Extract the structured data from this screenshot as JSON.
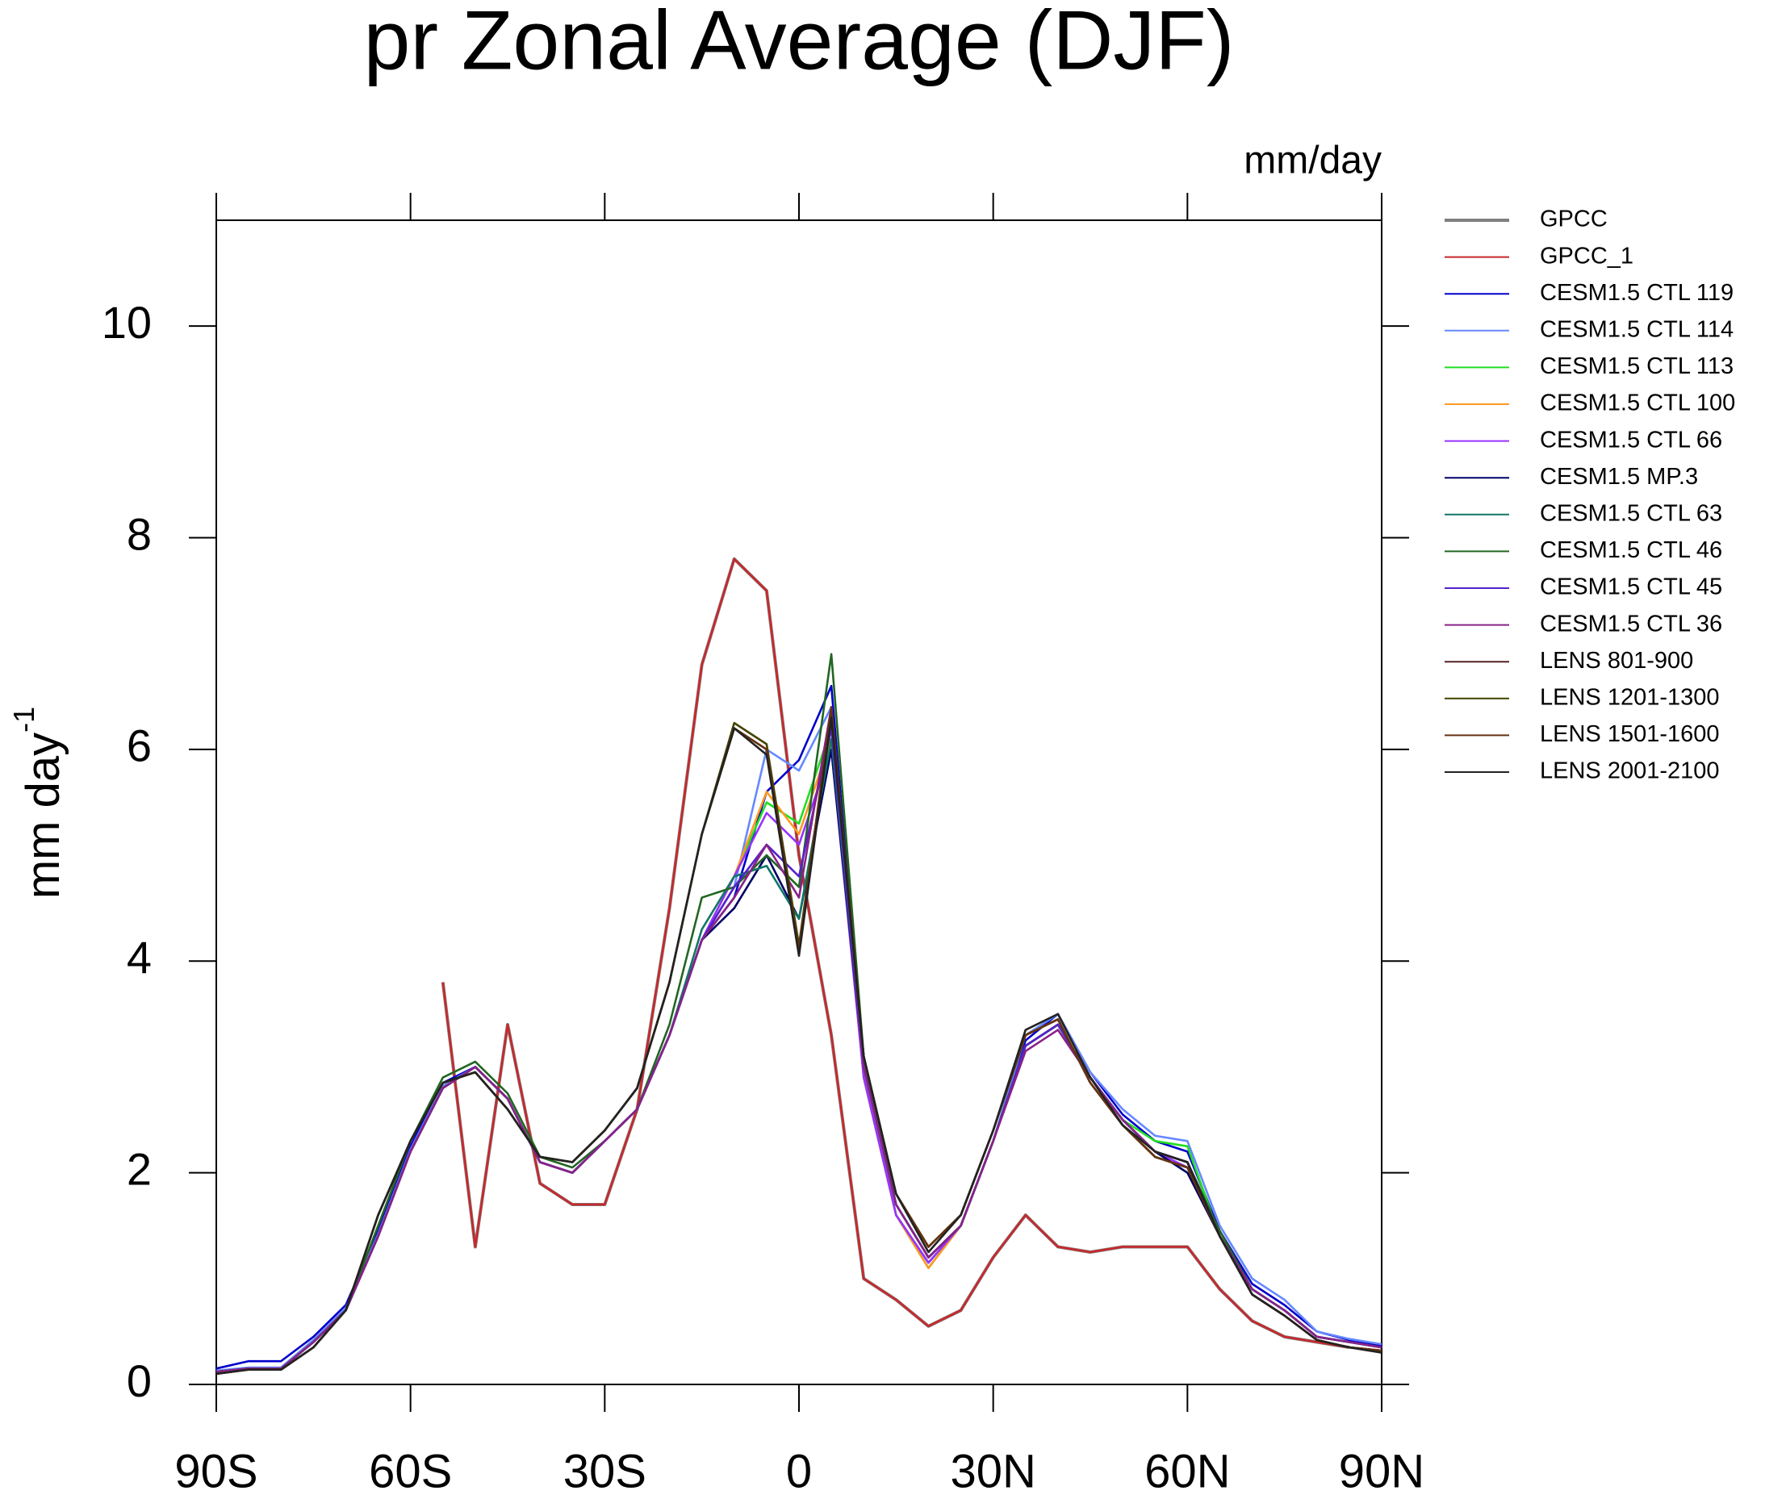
{
  "chart_data": {
    "type": "line",
    "title": "pr Zonal Average (DJF)",
    "units": "mm/day",
    "ylabel": "mm day",
    "ylabel_superscript": "-1",
    "x": [
      -90,
      -85,
      -80,
      -75,
      -70,
      -65,
      -60,
      -55,
      -50,
      -45,
      -40,
      -35,
      -30,
      -25,
      -20,
      -15,
      -10,
      -5,
      0,
      5,
      10,
      15,
      20,
      25,
      30,
      35,
      40,
      45,
      50,
      55,
      60,
      65,
      70,
      75,
      80,
      85,
      90
    ],
    "xlim": [
      -90,
      90
    ],
    "xticks": [
      {
        "value": -90,
        "label": "90S"
      },
      {
        "value": -60,
        "label": "60S"
      },
      {
        "value": -30,
        "label": "30S"
      },
      0,
      {
        "value": 30,
        "label": "30N"
      },
      {
        "value": 60,
        "label": "60N"
      },
      {
        "value": 90,
        "label": "90N"
      }
    ],
    "ylim": [
      0,
      11
    ],
    "yticks": [
      0,
      2,
      4,
      6,
      8,
      10
    ],
    "series": [
      {
        "name": "GPCC",
        "color": "#808080",
        "values": [
          null,
          null,
          null,
          null,
          null,
          null,
          null,
          3.8,
          1.3,
          3.4,
          1.9,
          1.7,
          1.7,
          2.6,
          4.5,
          6.8,
          7.8,
          7.5,
          5.0,
          3.3,
          1.0,
          0.8,
          0.55,
          0.7,
          1.2,
          1.6,
          1.3,
          1.25,
          1.3,
          1.3,
          1.3,
          0.9,
          0.6,
          0.45,
          0.4,
          0.35,
          null
        ]
      },
      {
        "name": "GPCC_1",
        "color": "#c8282c",
        "values": [
          null,
          null,
          null,
          null,
          null,
          null,
          null,
          3.8,
          1.3,
          3.4,
          1.9,
          1.7,
          1.7,
          2.6,
          4.5,
          6.8,
          7.8,
          7.5,
          5.0,
          3.3,
          1.0,
          0.8,
          0.55,
          0.7,
          1.2,
          1.6,
          1.3,
          1.25,
          1.3,
          1.3,
          1.3,
          0.9,
          0.6,
          0.45,
          0.4,
          0.35,
          null
        ]
      },
      {
        "name": "CESM1.5 CTL 119",
        "color": "#0000cc",
        "values": [
          0.15,
          0.22,
          0.22,
          0.45,
          0.75,
          1.45,
          2.25,
          2.85,
          3.0,
          2.7,
          2.1,
          2.0,
          2.3,
          2.6,
          3.3,
          4.2,
          4.6,
          5.6,
          5.9,
          6.6,
          3.0,
          1.6,
          1.15,
          1.5,
          2.3,
          3.25,
          3.5,
          2.95,
          2.55,
          2.3,
          2.2,
          1.45,
          0.95,
          0.75,
          0.5,
          0.42,
          0.37
        ]
      },
      {
        "name": "CESM1.5 CTL 114",
        "color": "#6688ff",
        "values": [
          0.13,
          0.16,
          0.16,
          0.42,
          0.72,
          1.42,
          2.22,
          2.82,
          3.0,
          2.7,
          2.1,
          2.0,
          2.3,
          2.6,
          3.3,
          4.2,
          4.7,
          6.0,
          5.8,
          6.4,
          3.0,
          1.6,
          1.15,
          1.5,
          2.3,
          3.3,
          3.5,
          2.95,
          2.6,
          2.35,
          2.3,
          1.5,
          1.0,
          0.8,
          0.5,
          0.43,
          0.38
        ]
      },
      {
        "name": "CESM1.5 CTL 113",
        "color": "#22dd22",
        "values": [
          0.12,
          0.15,
          0.15,
          0.4,
          0.7,
          1.4,
          2.2,
          2.8,
          3.0,
          2.7,
          2.1,
          2.0,
          2.3,
          2.6,
          3.3,
          4.2,
          4.8,
          5.5,
          5.3,
          6.2,
          2.9,
          1.6,
          1.1,
          1.5,
          2.3,
          3.2,
          3.4,
          2.9,
          2.5,
          2.3,
          2.25,
          1.4,
          0.9,
          0.7,
          0.45,
          0.4,
          0.35
        ]
      },
      {
        "name": "CESM1.5 CTL 100",
        "color": "#ff9922",
        "values": [
          0.12,
          0.15,
          0.15,
          0.4,
          0.7,
          1.4,
          2.2,
          2.8,
          3.0,
          2.7,
          2.1,
          2.0,
          2.3,
          2.6,
          3.3,
          4.2,
          4.8,
          5.6,
          5.2,
          6.1,
          2.9,
          1.6,
          1.1,
          1.5,
          2.3,
          3.2,
          3.4,
          2.9,
          2.5,
          2.2,
          2.1,
          1.4,
          0.9,
          0.7,
          0.45,
          0.4,
          0.35
        ]
      },
      {
        "name": "CESM1.5 CTL 66",
        "color": "#9933ff",
        "values": [
          0.12,
          0.15,
          0.15,
          0.4,
          0.7,
          1.4,
          2.2,
          2.8,
          3.0,
          2.7,
          2.1,
          2.0,
          2.3,
          2.6,
          3.3,
          4.2,
          4.8,
          5.4,
          5.1,
          6.0,
          2.9,
          1.6,
          1.15,
          1.5,
          2.3,
          3.2,
          3.4,
          2.9,
          2.5,
          2.2,
          2.05,
          1.4,
          0.9,
          0.7,
          0.45,
          0.4,
          0.35
        ]
      },
      {
        "name": "CESM1.5 MP.3",
        "color": "#000066",
        "values": [
          0.12,
          0.15,
          0.15,
          0.4,
          0.7,
          1.4,
          2.2,
          2.8,
          3.0,
          2.7,
          2.1,
          2.0,
          2.3,
          2.6,
          3.3,
          4.2,
          4.5,
          5.0,
          4.4,
          6.0,
          3.0,
          1.7,
          1.2,
          1.5,
          2.3,
          3.2,
          3.4,
          2.9,
          2.5,
          2.2,
          2.0,
          1.4,
          0.9,
          0.7,
          0.45,
          0.4,
          0.35
        ]
      },
      {
        "name": "CESM1.5 CTL 63",
        "color": "#117766",
        "values": [
          0.12,
          0.15,
          0.15,
          0.4,
          0.7,
          1.4,
          2.2,
          2.8,
          3.0,
          2.7,
          2.1,
          2.0,
          2.3,
          2.6,
          3.3,
          4.3,
          4.8,
          4.9,
          4.4,
          6.1,
          3.0,
          1.7,
          1.2,
          1.5,
          2.3,
          3.2,
          3.4,
          2.9,
          2.5,
          2.2,
          2.1,
          1.4,
          0.9,
          0.7,
          0.45,
          0.4,
          0.35
        ]
      },
      {
        "name": "CESM1.5 CTL 46",
        "color": "#226622",
        "values": [
          0.12,
          0.15,
          0.15,
          0.4,
          0.7,
          1.5,
          2.3,
          2.9,
          3.05,
          2.75,
          2.15,
          2.05,
          2.3,
          2.6,
          3.4,
          4.6,
          4.7,
          5.0,
          4.7,
          6.9,
          3.1,
          1.7,
          1.2,
          1.5,
          2.3,
          3.2,
          3.4,
          2.9,
          2.5,
          2.2,
          2.1,
          1.45,
          0.9,
          0.7,
          0.45,
          0.4,
          0.35
        ]
      },
      {
        "name": "CESM1.5 CTL 45",
        "color": "#5522cc",
        "values": [
          0.12,
          0.15,
          0.15,
          0.4,
          0.7,
          1.4,
          2.2,
          2.8,
          3.0,
          2.7,
          2.1,
          2.0,
          2.3,
          2.6,
          3.3,
          4.2,
          4.7,
          5.1,
          4.8,
          6.2,
          3.0,
          1.7,
          1.2,
          1.5,
          2.3,
          3.2,
          3.4,
          2.9,
          2.5,
          2.2,
          2.1,
          1.4,
          0.9,
          0.7,
          0.45,
          0.4,
          0.35
        ]
      },
      {
        "name": "CESM1.5 CTL 36",
        "color": "#882288",
        "values": [
          0.12,
          0.15,
          0.15,
          0.4,
          0.7,
          1.4,
          2.2,
          2.8,
          3.0,
          2.7,
          2.1,
          2.0,
          2.3,
          2.6,
          3.3,
          4.2,
          4.6,
          5.1,
          4.6,
          6.4,
          3.0,
          1.7,
          1.2,
          1.5,
          2.3,
          3.15,
          3.35,
          2.9,
          2.5,
          2.2,
          2.1,
          1.4,
          0.9,
          0.7,
          0.45,
          0.4,
          0.35
        ]
      },
      {
        "name": "LENS 801-900",
        "color": "#552222",
        "values": [
          0.1,
          0.14,
          0.14,
          0.35,
          0.7,
          1.6,
          2.3,
          2.85,
          2.95,
          2.6,
          2.15,
          2.1,
          2.4,
          2.8,
          3.8,
          5.2,
          6.2,
          6.0,
          4.1,
          6.3,
          3.1,
          1.8,
          1.3,
          1.6,
          2.4,
          3.3,
          3.45,
          2.85,
          2.45,
          2.15,
          2.05,
          1.4,
          0.85,
          0.65,
          0.42,
          0.35,
          0.32
        ]
      },
      {
        "name": "LENS 1201-1300",
        "color": "#444400",
        "values": [
          0.1,
          0.14,
          0.14,
          0.35,
          0.7,
          1.6,
          2.3,
          2.85,
          2.95,
          2.6,
          2.15,
          2.1,
          2.4,
          2.8,
          3.8,
          5.2,
          6.25,
          6.05,
          4.15,
          6.35,
          3.1,
          1.8,
          1.3,
          1.6,
          2.4,
          3.3,
          3.45,
          2.85,
          2.45,
          2.15,
          2.05,
          1.4,
          0.85,
          0.65,
          0.42,
          0.35,
          0.32
        ]
      },
      {
        "name": "LENS 1501-1600",
        "color": "#663311",
        "values": [
          0.1,
          0.14,
          0.14,
          0.35,
          0.7,
          1.6,
          2.3,
          2.85,
          2.95,
          2.6,
          2.15,
          2.1,
          2.4,
          2.8,
          3.8,
          5.2,
          6.2,
          6.0,
          4.1,
          6.4,
          3.1,
          1.8,
          1.3,
          1.6,
          2.4,
          3.3,
          3.45,
          2.85,
          2.45,
          2.15,
          2.05,
          1.4,
          0.85,
          0.65,
          0.42,
          0.35,
          0.32
        ]
      },
      {
        "name": "LENS 2001-2100",
        "color": "#222222",
        "values": [
          0.1,
          0.14,
          0.14,
          0.35,
          0.7,
          1.6,
          2.3,
          2.85,
          2.95,
          2.6,
          2.15,
          2.1,
          2.4,
          2.8,
          3.8,
          5.2,
          6.2,
          5.95,
          4.05,
          6.3,
          3.1,
          1.8,
          1.25,
          1.6,
          2.4,
          3.35,
          3.5,
          2.9,
          2.45,
          2.2,
          2.1,
          1.4,
          0.85,
          0.65,
          0.42,
          0.35,
          0.3
        ]
      }
    ]
  }
}
